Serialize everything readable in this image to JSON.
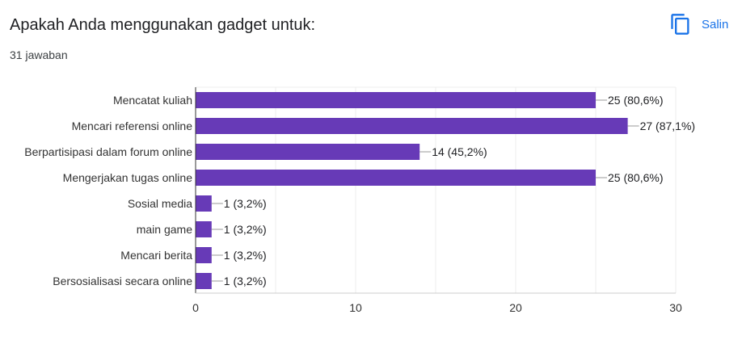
{
  "header": {
    "question": "Apakah Anda menggunakan gadget untuk:",
    "response_count": "31 jawaban",
    "copy_label": "Salin",
    "copy_icon": "copy-icon"
  },
  "colors": {
    "bar": "#673ab7",
    "accent": "#1a73e8",
    "grid": "#eeeeee",
    "axis": "#333333",
    "text": "#202124"
  },
  "chart_data": {
    "type": "bar",
    "orientation": "horizontal",
    "categories": [
      "Mencatat kuliah",
      "Mencari referensi online",
      "Berpartisipasi dalam forum online",
      "Mengerjakan tugas online",
      "Sosial media",
      "main game",
      "Mencari berita",
      "Bersosialisasi secara online"
    ],
    "values": [
      25,
      27,
      14,
      25,
      1,
      1,
      1,
      1
    ],
    "data_labels": [
      "25 (80,6%)",
      "27 (87,1%)",
      "14 (45,2%)",
      "25 (80,6%)",
      "1 (3,2%)",
      "1 (3,2%)",
      "1 (3,2%)",
      "1 (3,2%)"
    ],
    "xlim": [
      0,
      30
    ],
    "xticks": [
      0,
      10,
      20,
      30
    ],
    "grid": true,
    "legend": "none"
  }
}
